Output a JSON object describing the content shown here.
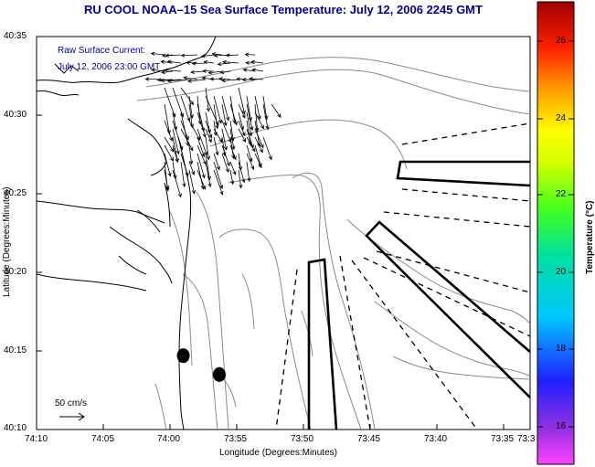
{
  "title": "RU COOL  NOAA–15  Sea Surface Temperature:  July 12, 2006 2245 GMT",
  "annotation": {
    "line1": "Raw Surface Current:",
    "line2": "July 12, 2006 23:00 GMT"
  },
  "scale_label": "50 cm/s",
  "x_axis": {
    "label": "Longitude (Degrees:Minutes)",
    "ticks": [
      "74:10",
      "74:05",
      "74:00",
      "73:55",
      "73:50",
      "73:45",
      "73:40",
      "73:35",
      "73:3"
    ]
  },
  "y_axis": {
    "label": "Latitude (Degrees:Minutes)",
    "ticks": [
      "40:35",
      "40:30",
      "40:25",
      "40:20",
      "40:15",
      "40:10"
    ]
  },
  "colorbar": {
    "label": "Temperature (°C)",
    "ticks": [
      "26",
      "24",
      "22",
      "20",
      "18",
      "16"
    ],
    "range": [
      15,
      27.3
    ]
  },
  "colors": {
    "title": "#0000a0",
    "annotation": "#0000a0",
    "coast": "#000000",
    "bathymetry": "#808080"
  },
  "map_data": {
    "lon_range_min": [
      -610,
      -573
    ],
    "lat_range_min": [
      2410,
      2435
    ],
    "markers": [
      {
        "lon": -599,
        "lat": 2414.7
      },
      {
        "lon": -596.3,
        "lat": 2413.5
      }
    ]
  }
}
